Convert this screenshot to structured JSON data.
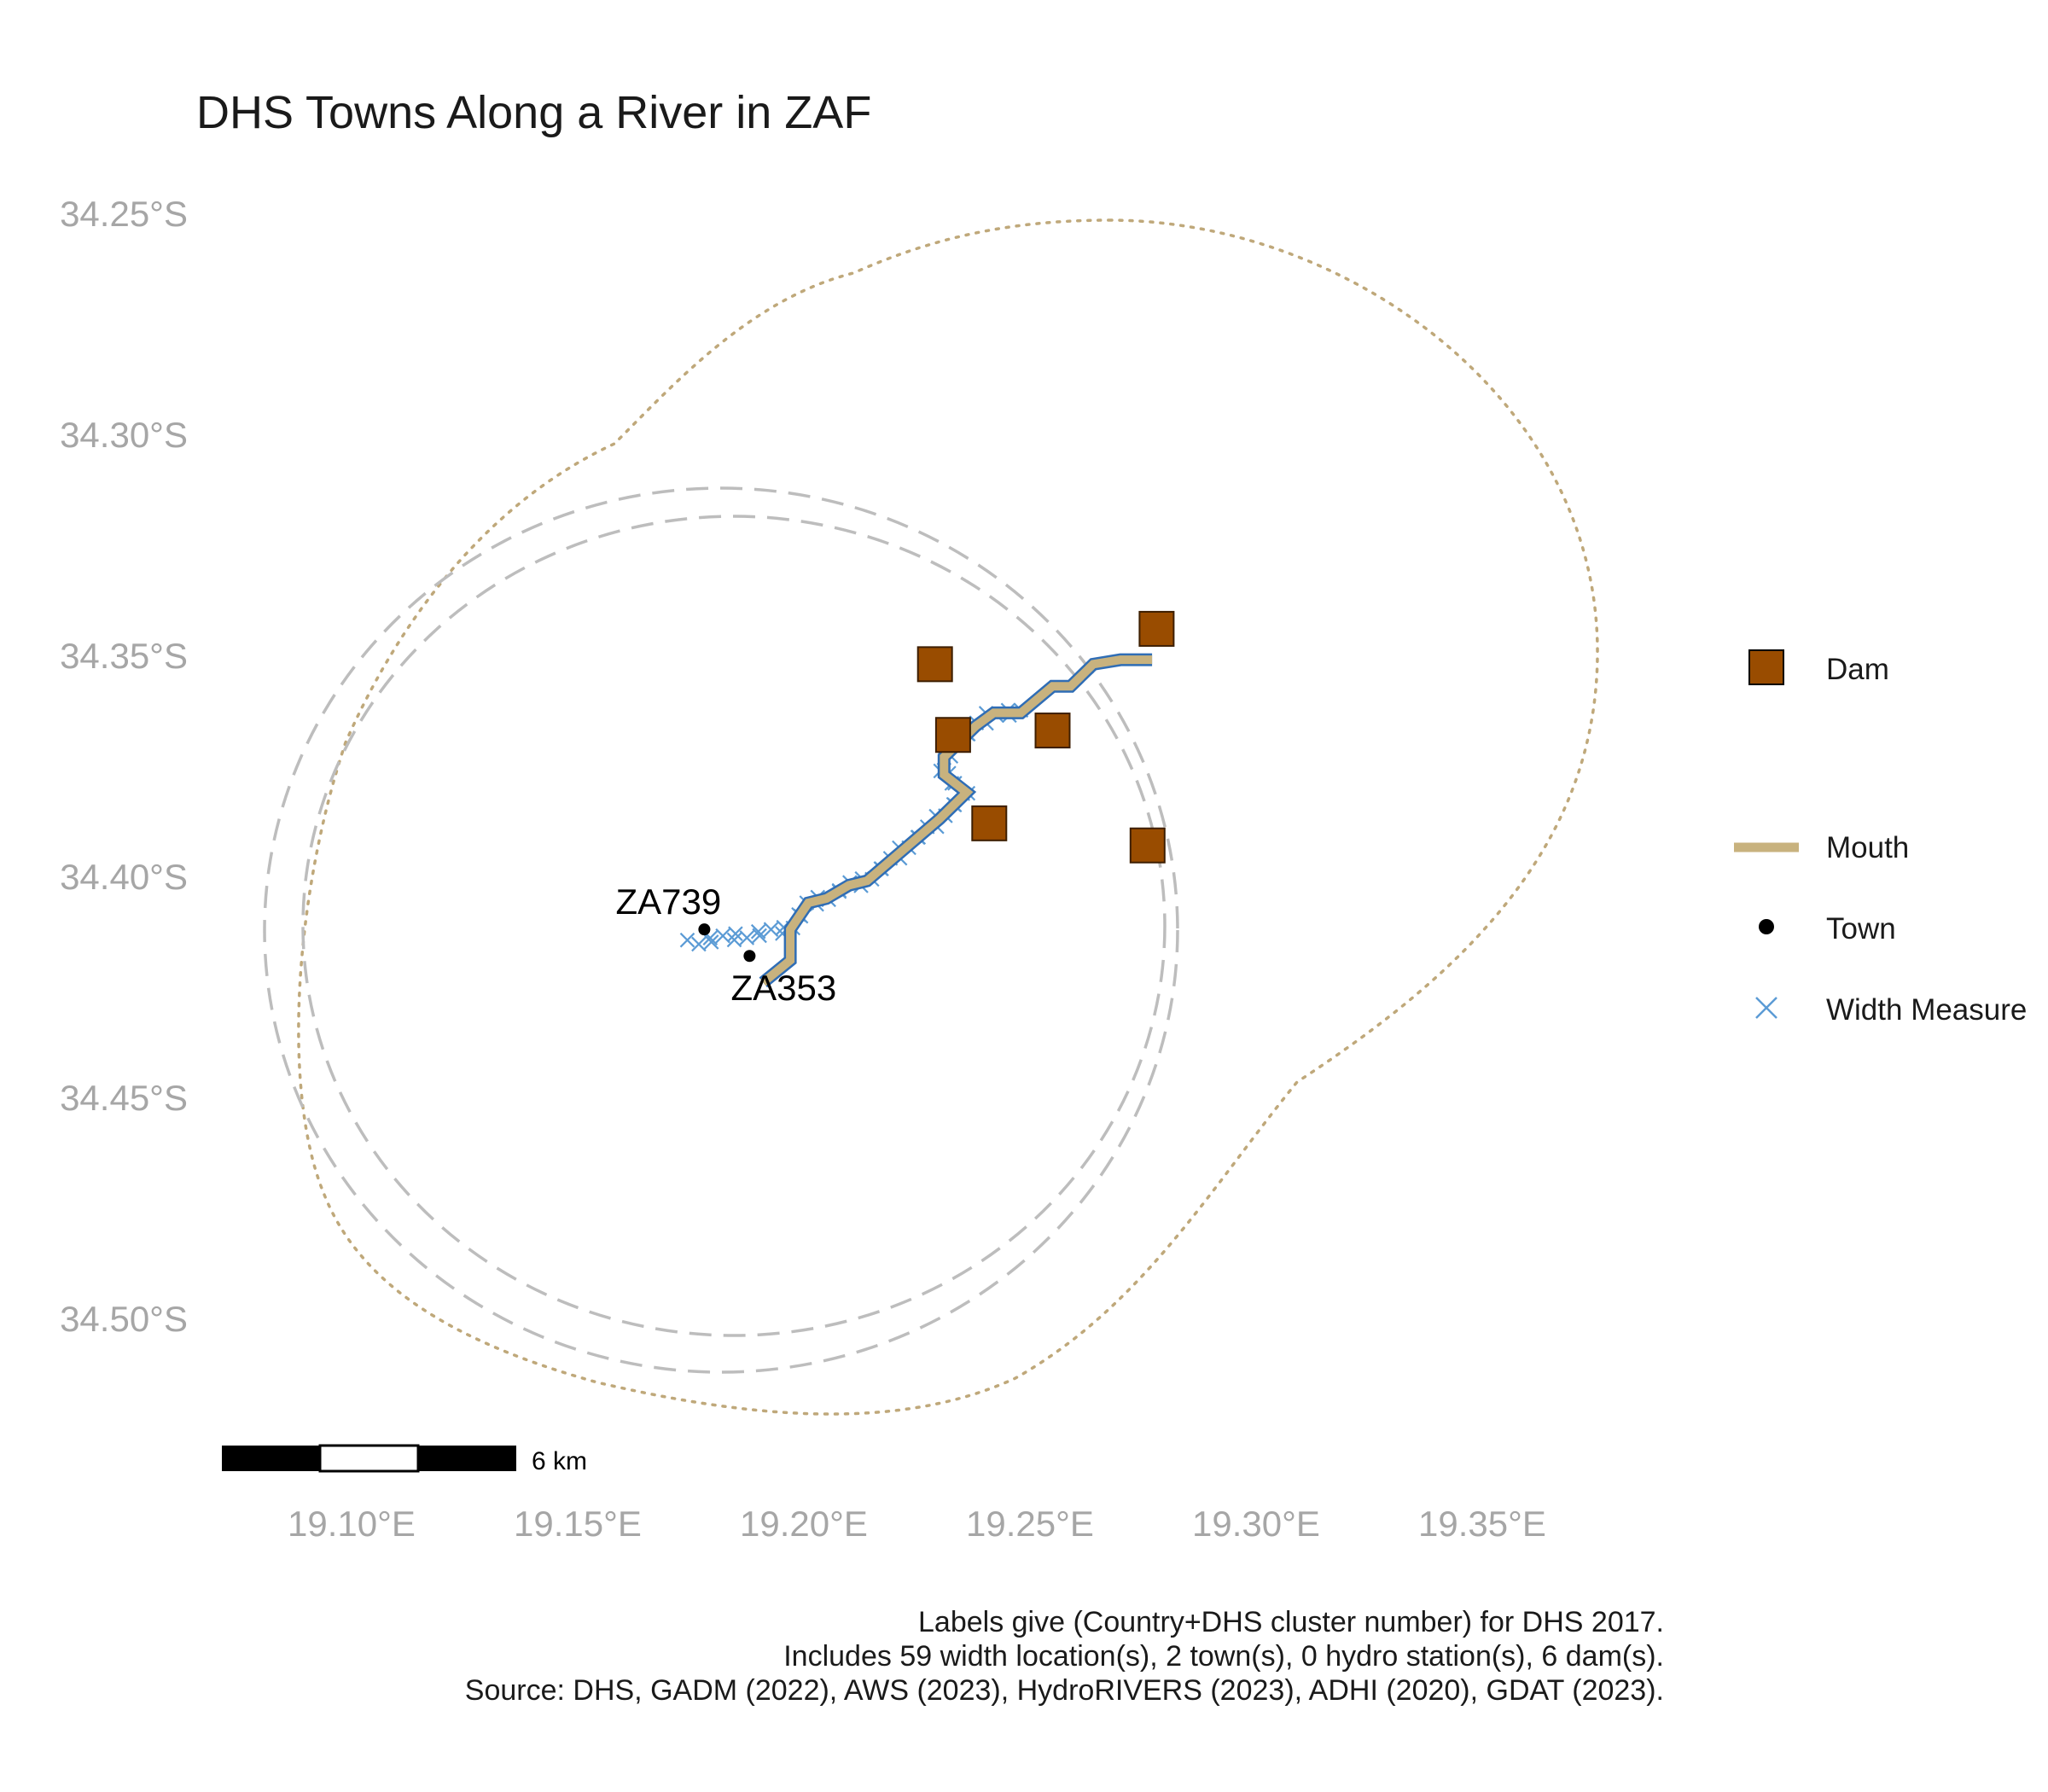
{
  "title": "DHS Towns Along a River in ZAF",
  "colors": {
    "dam_fill": "#994c00",
    "mouth_line": "#c8b27e",
    "river_outline": "#2f6db5",
    "width_marker": "#5b9bd5",
    "town_point": "#000000",
    "dashed_buffer": "#bdbdbd",
    "dotted_buffer": "#bfa87a"
  },
  "axes": {
    "lon_ticks": [
      "19.10°E",
      "19.15°E",
      "19.20°E",
      "19.25°E",
      "19.30°E",
      "19.35°E"
    ],
    "lat_ticks": [
      "34.25°S",
      "34.30°S",
      "34.35°S",
      "34.40°S",
      "34.45°S",
      "34.50°S"
    ]
  },
  "towns": [
    {
      "label": "ZA739",
      "lon": 19.178,
      "lat": -34.412
    },
    {
      "label": "ZA353",
      "lon": 19.188,
      "lat": -34.418
    }
  ],
  "dams": [
    {
      "lon": 19.229,
      "lat": -34.352
    },
    {
      "lon": 19.233,
      "lat": -34.368
    },
    {
      "lon": 19.255,
      "lat": -34.367
    },
    {
      "lon": 19.241,
      "lat": -34.388
    },
    {
      "lon": 19.278,
      "lat": -34.344
    },
    {
      "lon": 19.276,
      "lat": -34.393
    }
  ],
  "river": [
    [
      19.191,
      -34.424
    ],
    [
      19.197,
      -34.419
    ],
    [
      19.197,
      -34.412
    ],
    [
      19.201,
      -34.406
    ],
    [
      19.205,
      -34.405
    ],
    [
      19.21,
      -34.402
    ],
    [
      19.214,
      -34.401
    ],
    [
      19.222,
      -34.394
    ],
    [
      19.23,
      -34.387
    ],
    [
      19.236,
      -34.381
    ],
    [
      19.231,
      -34.377
    ],
    [
      19.231,
      -34.373
    ],
    [
      19.238,
      -34.366
    ],
    [
      19.242,
      -34.363
    ],
    [
      19.248,
      -34.363
    ],
    [
      19.255,
      -34.357
    ],
    [
      19.259,
      -34.357
    ],
    [
      19.264,
      -34.352
    ],
    [
      19.27,
      -34.351
    ],
    [
      19.277,
      -34.351
    ]
  ],
  "width_measure_count": 59,
  "legend": {
    "items": [
      {
        "key": "dam",
        "label": "Dam"
      },
      {
        "key": "mouth",
        "label": "Mouth"
      },
      {
        "key": "town",
        "label": "Town"
      },
      {
        "key": "width",
        "label": "Width Measure"
      }
    ]
  },
  "scale_bar": {
    "label": "6 km"
  },
  "caption": [
    "Labels give (Country+DHS cluster number) for DHS 2017.",
    "Includes 59 width location(s), 2 town(s), 0 hydro station(s), 6 dam(s).",
    "Source: DHS, GADM (2022), AWS (2023), HydroRIVERS (2023), ADHI (2020), GDAT (2023)."
  ]
}
